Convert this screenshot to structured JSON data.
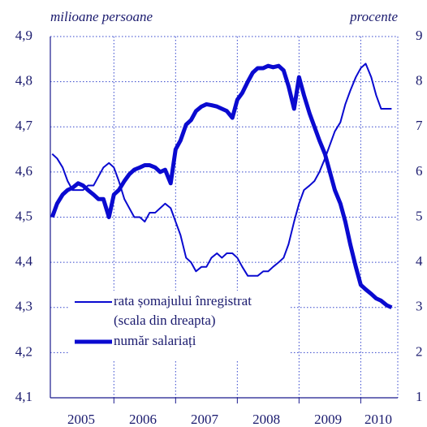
{
  "chart_data": {
    "type": "line",
    "left_axis_label": "milioane persoane",
    "right_axis_label": "procente",
    "categories": [
      "2005",
      "2006",
      "2007",
      "2008",
      "2009",
      "2010"
    ],
    "x": [
      2005,
      2005.08,
      2005.17,
      2005.25,
      2005.33,
      2005.42,
      2005.5,
      2005.58,
      2005.67,
      2005.75,
      2005.83,
      2005.92,
      2006,
      2006.08,
      2006.17,
      2006.25,
      2006.33,
      2006.42,
      2006.5,
      2006.58,
      2006.67,
      2006.75,
      2006.83,
      2006.92,
      2007,
      2007.08,
      2007.17,
      2007.25,
      2007.33,
      2007.42,
      2007.5,
      2007.58,
      2007.67,
      2007.75,
      2007.83,
      2007.92,
      2008,
      2008.08,
      2008.17,
      2008.25,
      2008.33,
      2008.42,
      2008.5,
      2008.58,
      2008.67,
      2008.75,
      2008.83,
      2008.92,
      2009,
      2009.08,
      2009.17,
      2009.25,
      2009.33,
      2009.42,
      2009.5,
      2009.58,
      2009.67,
      2009.75,
      2009.83,
      2009.92,
      2010,
      2010.08,
      2010.17,
      2010.25,
      2010.33,
      2010.42,
      2010.5
    ],
    "xlim": [
      2004.97,
      2010.6
    ],
    "xticks": [
      2006,
      2007,
      2008,
      2009,
      2010
    ],
    "ylim": [
      4.1,
      4.9
    ],
    "yticks": [
      {
        "value": 4.1,
        "label": "4,1"
      },
      {
        "value": 4.2,
        "label": "4,2"
      },
      {
        "value": 4.3,
        "label": "4,3"
      },
      {
        "value": 4.4,
        "label": "4,4"
      },
      {
        "value": 4.5,
        "label": "4,5"
      },
      {
        "value": 4.6,
        "label": "4,6"
      },
      {
        "value": 4.7,
        "label": "4,7"
      },
      {
        "value": 4.8,
        "label": "4,8"
      },
      {
        "value": 4.9,
        "label": "4,9"
      }
    ],
    "y2lim": [
      1,
      9
    ],
    "y2ticks": [
      1,
      2,
      3,
      4,
      5,
      6,
      7,
      8,
      9
    ],
    "grid": true,
    "series": [
      {
        "name": "rata șomajului înregistrat",
        "axis_note": "(scala din dreapta)",
        "axis": "y2",
        "color": "#0a0ad0",
        "width": 2,
        "values": [
          6.4,
          6.3,
          6.1,
          5.8,
          5.6,
          5.6,
          5.6,
          5.7,
          5.7,
          5.9,
          6.1,
          6.2,
          6.1,
          5.8,
          5.4,
          5.2,
          5.0,
          5.0,
          4.9,
          5.1,
          5.1,
          5.2,
          5.3,
          5.2,
          4.9,
          4.6,
          4.1,
          4.0,
          3.8,
          3.9,
          3.9,
          4.1,
          4.2,
          4.1,
          4.2,
          4.2,
          4.1,
          3.9,
          3.7,
          3.7,
          3.7,
          3.8,
          3.8,
          3.9,
          4.0,
          4.1,
          4.4,
          4.9,
          5.3,
          5.6,
          5.7,
          5.8,
          6.0,
          6.3,
          6.6,
          6.9,
          7.1,
          7.5,
          7.8,
          8.1,
          8.3,
          8.4,
          8.1,
          7.7,
          7.4,
          7.4,
          7.4
        ]
      },
      {
        "name": "număr salariați",
        "axis": "y",
        "color": "#0a0ad0",
        "width": 5,
        "values": [
          4.5,
          4.53,
          4.55,
          4.56,
          4.565,
          4.575,
          4.57,
          4.56,
          4.55,
          4.54,
          4.54,
          4.5,
          4.55,
          4.56,
          4.58,
          4.595,
          4.605,
          4.61,
          4.615,
          4.615,
          4.61,
          4.6,
          4.605,
          4.575,
          4.65,
          4.67,
          4.705,
          4.715,
          4.735,
          4.745,
          4.75,
          4.748,
          4.745,
          4.74,
          4.735,
          4.72,
          4.76,
          4.775,
          4.8,
          4.82,
          4.83,
          4.83,
          4.835,
          4.832,
          4.835,
          4.825,
          4.79,
          4.74,
          4.81,
          4.77,
          4.73,
          4.7,
          4.67,
          4.64,
          4.6,
          4.56,
          4.53,
          4.49,
          4.44,
          4.39,
          4.35,
          4.34,
          4.33,
          4.32,
          4.315,
          4.305,
          4.3
        ]
      }
    ]
  }
}
